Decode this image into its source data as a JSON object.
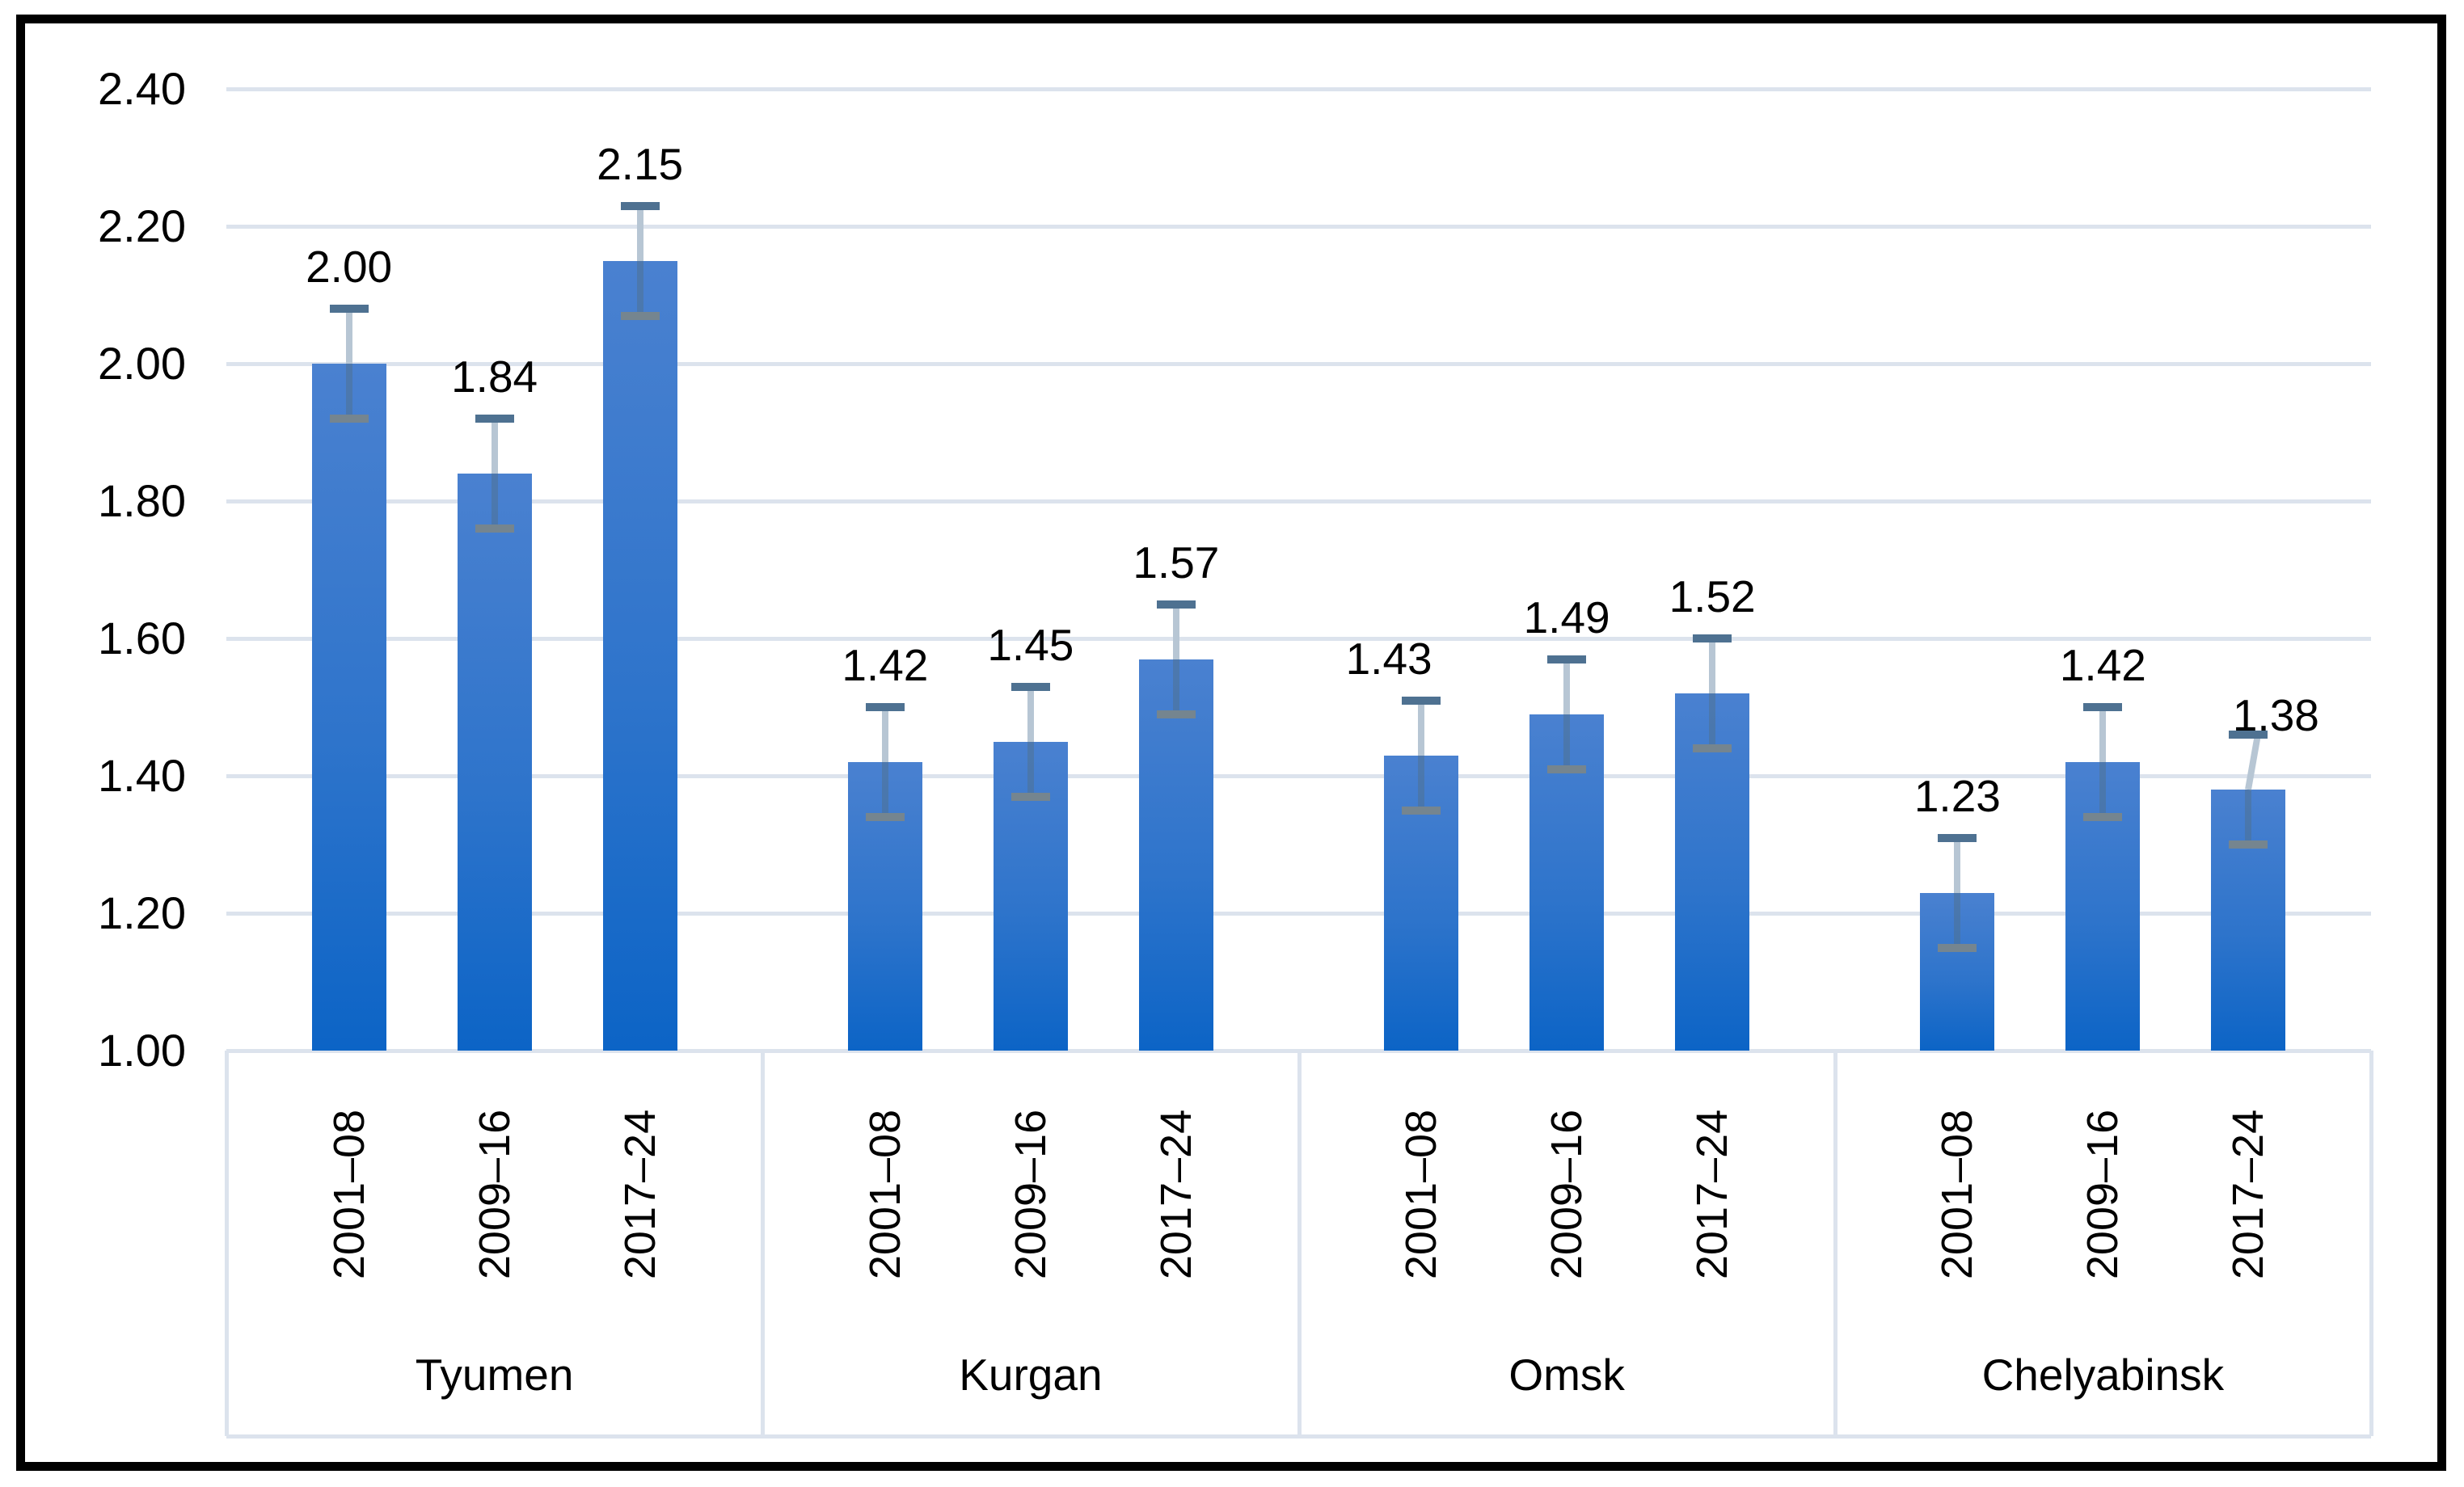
{
  "chart_data": {
    "type": "bar",
    "title": "",
    "xlabel": "",
    "ylabel": "",
    "ylim": [
      1.0,
      2.45
    ],
    "ytick_interval": 0.2,
    "yticks": [
      "2.40",
      "2.20",
      "2.00",
      "1.80",
      "1.60",
      "1.40",
      "1.20",
      "1.00"
    ],
    "grid": true,
    "legend": false,
    "periods": [
      "2001–08",
      "2009–16",
      "2017–24"
    ],
    "error_bar_plus_minus": 0.08,
    "groups": [
      {
        "name": "Tyumen",
        "values": [
          2.0,
          1.84,
          2.15
        ],
        "labels": [
          "2.00",
          "1.84",
          "2.15"
        ]
      },
      {
        "name": "Kurgan",
        "values": [
          1.42,
          1.45,
          1.57
        ],
        "labels": [
          "1.42",
          "1.45",
          "1.57"
        ]
      },
      {
        "name": "Omsk",
        "values": [
          1.43,
          1.49,
          1.52
        ],
        "labels": [
          "1.43",
          "1.49",
          "1.52"
        ]
      },
      {
        "name": "Chelyabinsk",
        "values": [
          1.23,
          1.42,
          1.38
        ],
        "labels": [
          "1.23",
          "1.42",
          "1.38"
        ]
      }
    ],
    "colors": {
      "bar_top": "#4a81d0",
      "bar_bottom": "#0c64c6",
      "gridline": "#dce3ed",
      "error_stem": "#b7c6d4",
      "error_cap_top": "#4e7191",
      "error_cap_bottom": "#75858f",
      "frame": "#000000",
      "text": "#000000",
      "background": "#ffffff"
    }
  }
}
